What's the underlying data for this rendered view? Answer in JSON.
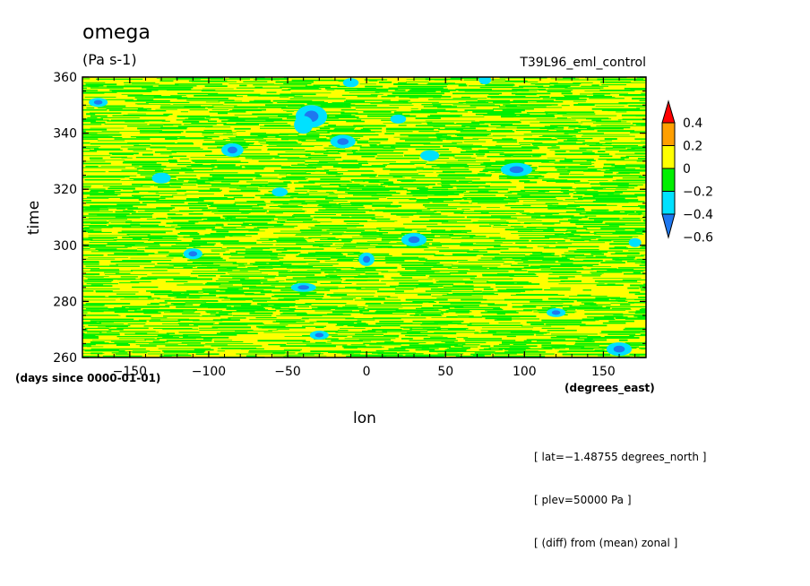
{
  "chart_data": {
    "type": "heatmap",
    "title": "omega",
    "units": "(Pa s-1)",
    "source_label": "T39L96_eml_control",
    "xlabel": "lon",
    "ylabel": "time",
    "x_units": "(degrees_east)",
    "y_units": "(days since 0000-01-01)",
    "xlim": [
      -180,
      177
    ],
    "ylim": [
      260,
      360
    ],
    "x_ticks": [
      -150,
      -100,
      -50,
      0,
      50,
      100,
      150
    ],
    "y_ticks": [
      260,
      280,
      300,
      320,
      340,
      360
    ],
    "x_tick_labels": [
      "−150",
      "−100",
      "−50",
      "0",
      "50",
      "100",
      "150"
    ],
    "y_tick_labels": [
      "260",
      "280",
      "300",
      "320",
      "340",
      "360"
    ],
    "colorbar": {
      "levels": [
        -0.6,
        -0.4,
        -0.2,
        0,
        0.2,
        0.4
      ],
      "labels": [
        "−0.6",
        "−0.4",
        "−0.2",
        "0",
        "0.2",
        "0.4"
      ],
      "colors": [
        "#1e78f0",
        "#00e1ff",
        "#00f000",
        "#ffff00",
        "#ff9f00",
        "#ff0000"
      ],
      "extend": "both"
    },
    "field_description": "Longitude-time Hovmoller of omega anomaly; dominated by values between -0.2 and 0.2 Pa/s with zonally elongated streaks, a few small patches between -0.6 and -0.2.",
    "notes": [
      "[ lat=−1.48755 degrees_north ]",
      "[ plev=50000 Pa ]",
      "[ (diff) from (mean) zonal ]"
    ]
  },
  "colors": {
    "yellow": "#ffff00",
    "green": "#00f000",
    "cyan": "#00e1ff",
    "blue": "#1e78f0",
    "orange": "#ff9f00",
    "red": "#ff0000"
  }
}
